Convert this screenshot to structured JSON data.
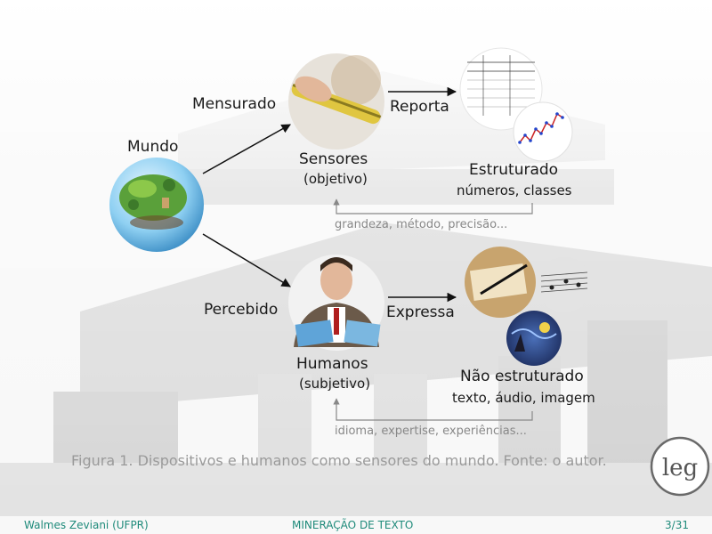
{
  "diagram": {
    "world": "Mundo",
    "top_edge": "Mensurado",
    "top_node": "Sensores",
    "top_node_note": "(objetivo)",
    "top_action": "Reporta",
    "top_target": "Estruturado",
    "top_target_note": "números, classes",
    "top_feedback": "grandeza, método, precisão...",
    "bottom_edge": "Percebido",
    "bottom_node": "Humanos",
    "bottom_node_note": "(subjetivo)",
    "bottom_action": "Expressa",
    "bottom_target": "Não estruturado",
    "bottom_target_note": "texto, áudio, imagem",
    "bottom_feedback": "idioma, expertise, experiências..."
  },
  "caption": "Figura 1. Dispositivos e humanos como sensores do mundo. Fonte: o autor.",
  "logo_text": "leg",
  "footer": {
    "author": "Walmes Zeviani (UFPR)",
    "title": "MINERAÇÃO DE TEXTO",
    "page": "3/31"
  }
}
